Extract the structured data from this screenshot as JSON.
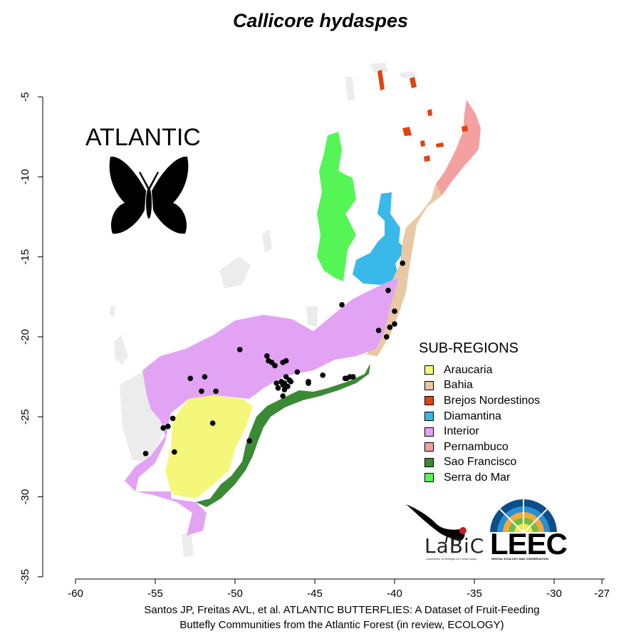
{
  "title": "Callicore hydaspes",
  "badge_text": "ATLANTIC",
  "legend": {
    "title": "SUB-REGIONS",
    "items": [
      {
        "label": "Araucaria",
        "color": "#f5f77a"
      },
      {
        "label": "Bahia",
        "color": "#e8c9a3"
      },
      {
        "label": "Brejos Nordestinos",
        "color": "#e0440e"
      },
      {
        "label": "Diamantina",
        "color": "#39b8ea"
      },
      {
        "label": "Interior",
        "color": "#e3a3f4"
      },
      {
        "label": "Pernambuco",
        "color": "#f4a0a0"
      },
      {
        "label": "Sao Francisco",
        "color": "#3a8a35"
      },
      {
        "label": "Serra do Mar",
        "color": "#55f555"
      }
    ]
  },
  "citation": {
    "line1": "Santos JP, Freitas AVL, et al. ATLANTIC BUTTERFLIES: A Dataset of Fruit-Feeding",
    "line2": "Buttefly Communities from the Atlantic Forest (in review, ECOLOGY)"
  },
  "logos": {
    "labic": "LaBiC",
    "labic_sub": "Laboratório de Biologia da Conservação",
    "leec": "LEEC",
    "leec_sub": "SPATIAL ECOLOGY AND CONSERVATION"
  },
  "chart_data": {
    "type": "scatter",
    "title": "Callicore hydaspes",
    "xlim": [
      -60,
      -27
    ],
    "ylim": [
      -35,
      -5
    ],
    "x_ticks": [
      -60,
      -55,
      -50,
      -45,
      -40,
      -35,
      -30,
      -27
    ],
    "y_ticks": [
      -5,
      -10,
      -15,
      -20,
      -25,
      -30,
      -35
    ],
    "series": [
      {
        "x": [
          -39.5,
          -40.4,
          -40.0,
          -40.0,
          -40.3,
          -40.5,
          -41.0,
          -43.3,
          -43.1,
          -43.0,
          -42.8,
          -42.6,
          -44.5,
          -45.4,
          -45.4,
          -46.5,
          -46.8,
          -46.9,
          -47.1,
          -47.0,
          -46.7,
          -46.9,
          -47.0,
          -47.3,
          -47.4,
          -47.0,
          -46.8,
          -47.5,
          -47.9,
          -48.0,
          -47.7,
          -46.6,
          -46.1,
          -49.7,
          -51.2,
          -51.9,
          -52.1,
          -52.8,
          -51.4,
          -53.9,
          -54.2,
          -54.5,
          -53.8,
          -55.6,
          -49.1
        ],
        "y": [
          -15.4,
          -17.1,
          -18.4,
          -19.2,
          -19.4,
          -20.0,
          -19.6,
          -18.0,
          -22.6,
          -22.6,
          -22.5,
          -22.5,
          -22.4,
          -22.9,
          -22.8,
          -22.8,
          -22.5,
          -22.9,
          -22.8,
          -23.0,
          -23.1,
          -23.3,
          -23.7,
          -23.2,
          -22.9,
          -21.6,
          -21.5,
          -21.8,
          -21.5,
          -21.2,
          -21.6,
          -22.7,
          -22.2,
          -20.8,
          -23.4,
          -22.5,
          -23.4,
          -22.6,
          -25.4,
          -25.1,
          -25.6,
          -25.7,
          -27.2,
          -27.3,
          -26.5
        ]
      }
    ]
  }
}
